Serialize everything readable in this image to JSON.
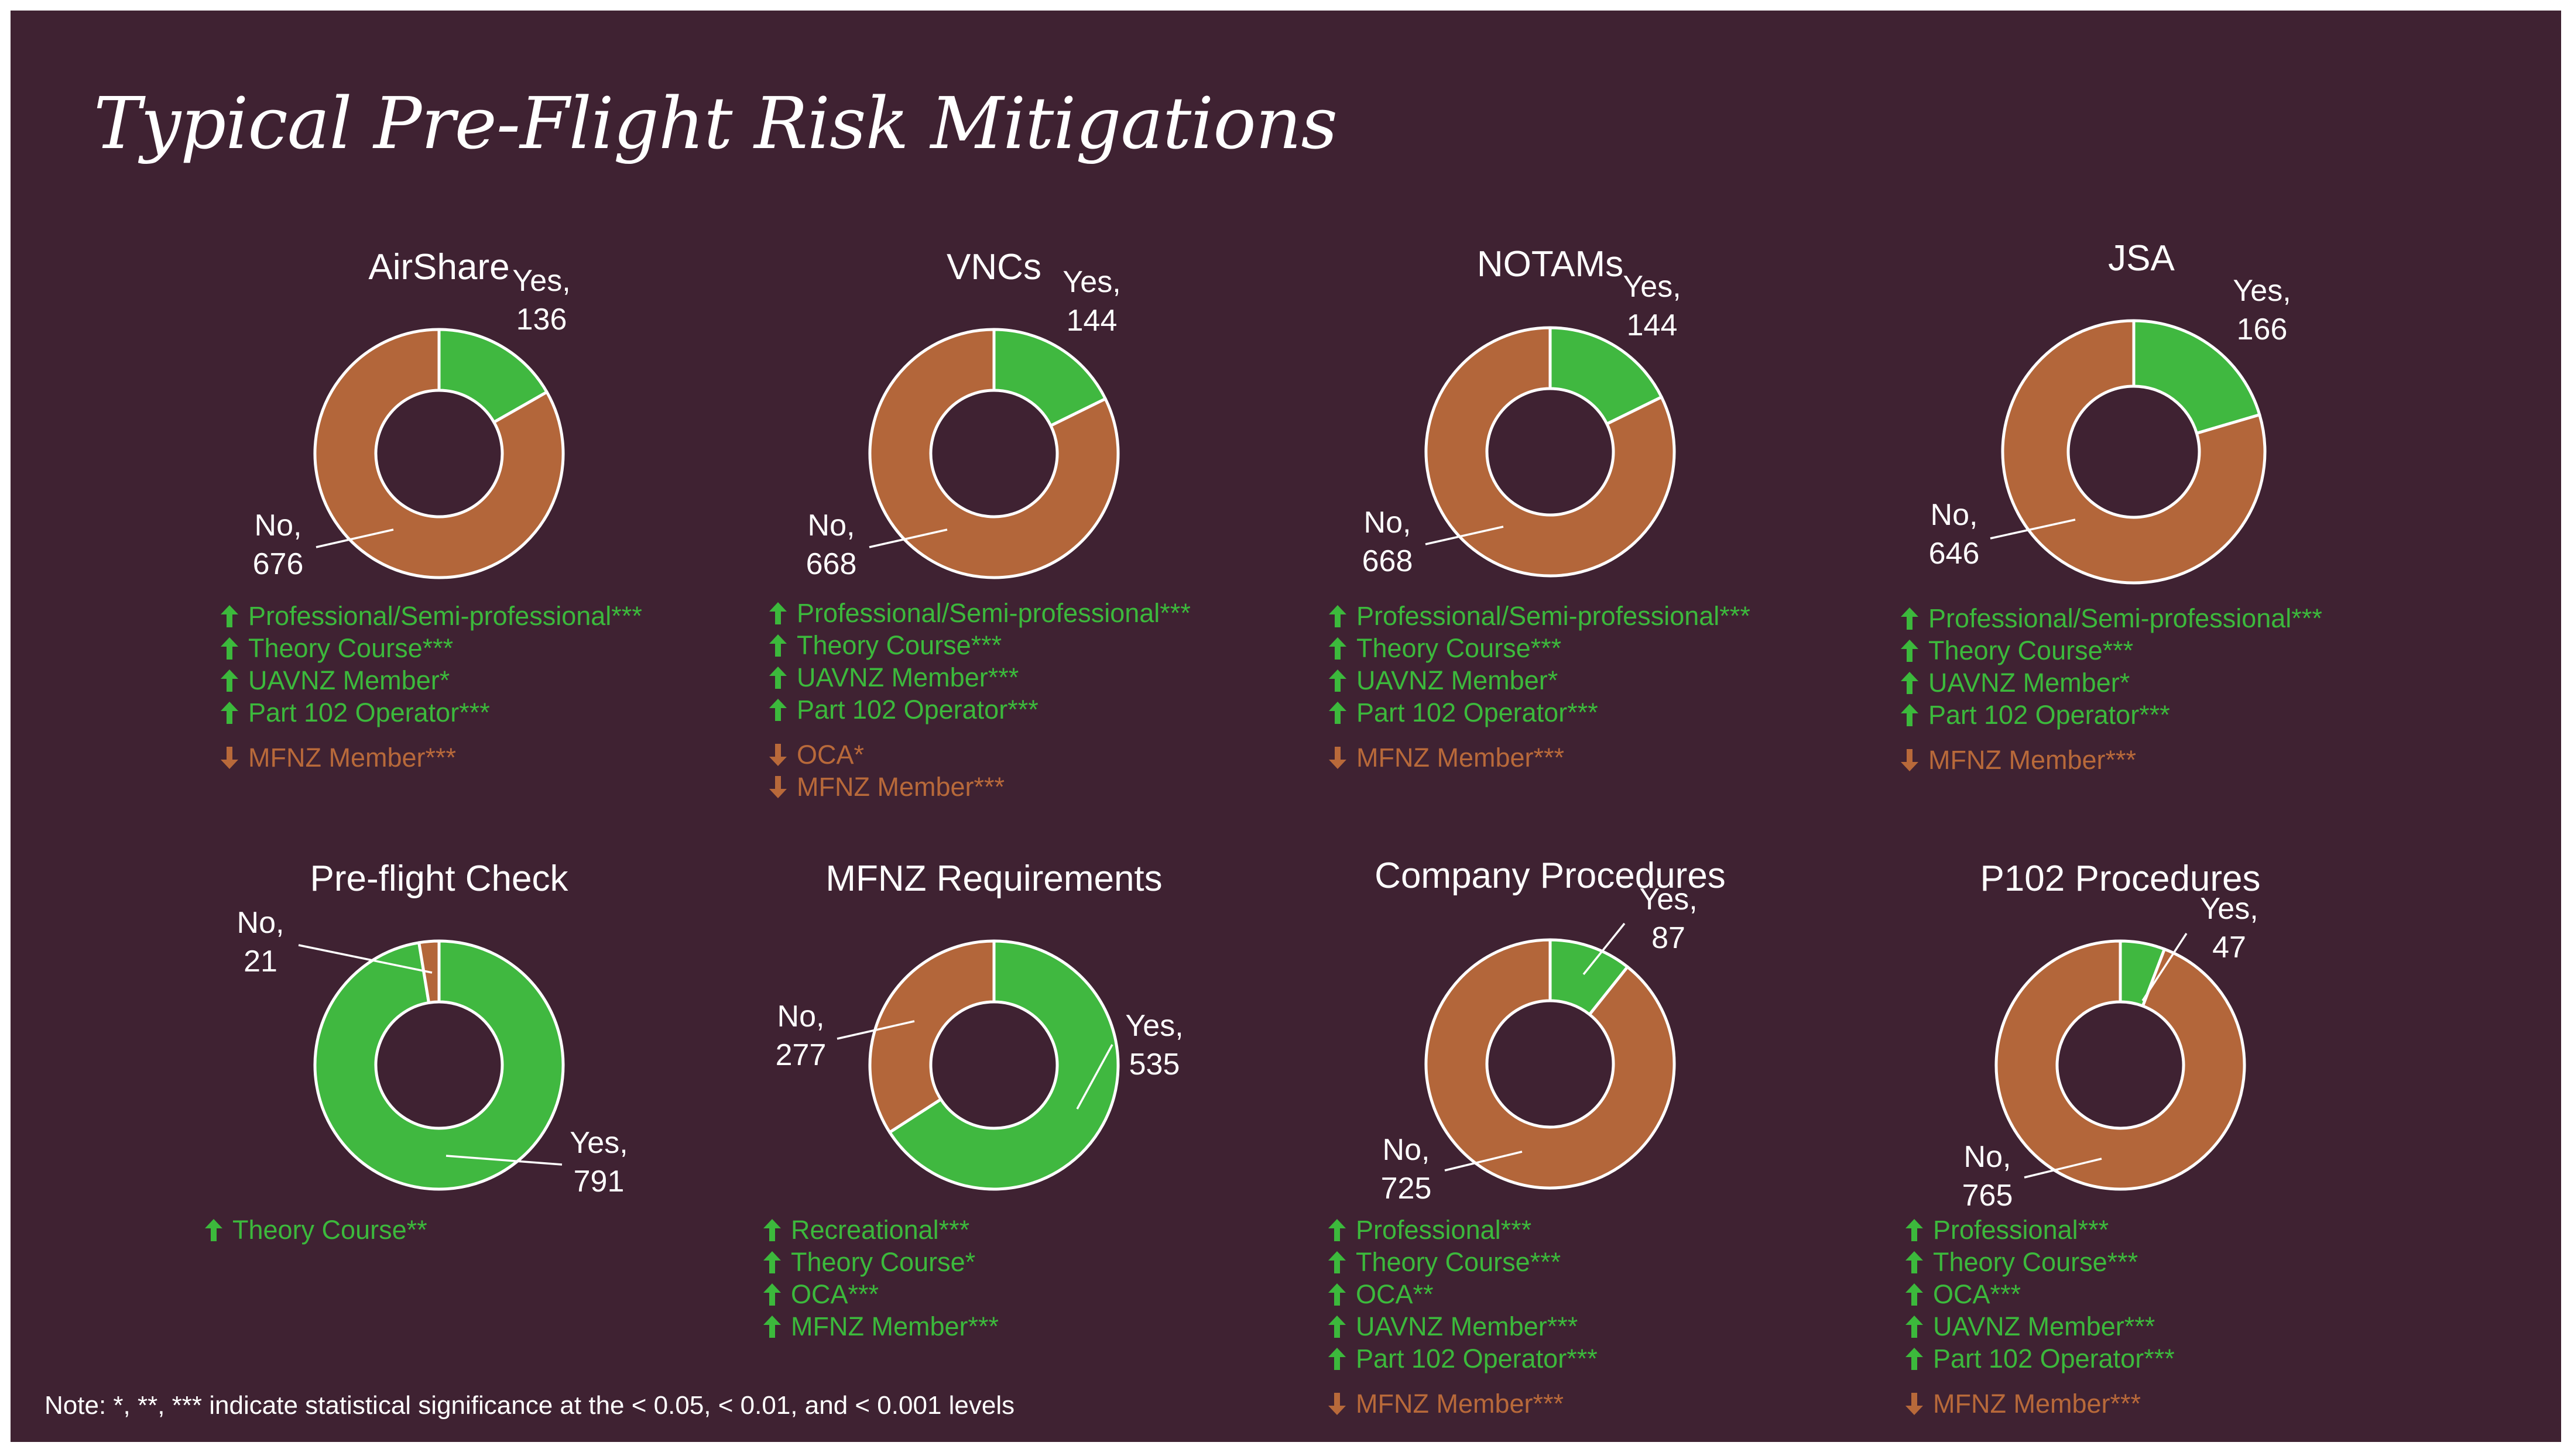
{
  "title": "Typical Pre-Flight Risk Mitigations",
  "note": "Note: *, **, *** indicate statistical significance at the < 0.05, < 0.01, and < 0.001 levels",
  "colors": {
    "background": "#3f2232",
    "yes": "#40b840",
    "no": "#b3663a",
    "up_text": "#3cb93c",
    "down_text": "#b8693a"
  },
  "chart_data": [
    {
      "type": "pie",
      "title": "AirShare",
      "slices": [
        {
          "name": "Yes",
          "value": 136,
          "label": "Yes,",
          "value_label": "136"
        },
        {
          "name": "No",
          "value": 676,
          "label": "No,",
          "value_label": "676"
        }
      ],
      "factors": [
        {
          "dir": "up",
          "text": "Professional/Semi-professional***"
        },
        {
          "dir": "up",
          "text": "Theory Course***"
        },
        {
          "dir": "up",
          "text": "UAVNZ Member*"
        },
        {
          "dir": "up",
          "text": "Part 102 Operator***"
        },
        {
          "dir": "down",
          "text": "MFNZ Member***"
        }
      ]
    },
    {
      "type": "pie",
      "title": "VNCs",
      "slices": [
        {
          "name": "Yes",
          "value": 144,
          "label": "Yes,",
          "value_label": "144"
        },
        {
          "name": "No",
          "value": 668,
          "label": "No,",
          "value_label": "668"
        }
      ],
      "factors": [
        {
          "dir": "up",
          "text": "Professional/Semi-professional***"
        },
        {
          "dir": "up",
          "text": "Theory Course***"
        },
        {
          "dir": "up",
          "text": "UAVNZ Member***"
        },
        {
          "dir": "up",
          "text": "Part 102 Operator***"
        },
        {
          "dir": "down",
          "text": "OCA*"
        },
        {
          "dir": "down",
          "text": "MFNZ Member***"
        }
      ]
    },
    {
      "type": "pie",
      "title": "NOTAMs",
      "slices": [
        {
          "name": "Yes",
          "value": 144,
          "label": "Yes,",
          "value_label": "144"
        },
        {
          "name": "No",
          "value": 668,
          "label": "No,",
          "value_label": "668"
        }
      ],
      "factors": [
        {
          "dir": "up",
          "text": "Professional/Semi-professional***"
        },
        {
          "dir": "up",
          "text": "Theory Course***"
        },
        {
          "dir": "up",
          "text": "UAVNZ Member*"
        },
        {
          "dir": "up",
          "text": "Part 102 Operator***"
        },
        {
          "dir": "down",
          "text": "MFNZ Member***"
        }
      ]
    },
    {
      "type": "pie",
      "title": "JSA",
      "slices": [
        {
          "name": "Yes",
          "value": 166,
          "label": "Yes,",
          "value_label": "166"
        },
        {
          "name": "No",
          "value": 646,
          "label": "No,",
          "value_label": "646"
        }
      ],
      "factors": [
        {
          "dir": "up",
          "text": "Professional/Semi-professional***"
        },
        {
          "dir": "up",
          "text": "Theory Course***"
        },
        {
          "dir": "up",
          "text": "UAVNZ Member*"
        },
        {
          "dir": "up",
          "text": "Part 102 Operator***"
        },
        {
          "dir": "down",
          "text": "MFNZ Member***"
        }
      ]
    },
    {
      "type": "pie",
      "title": "Pre-flight Check",
      "slices": [
        {
          "name": "Yes",
          "value": 791,
          "label": "Yes,",
          "value_label": "791"
        },
        {
          "name": "No",
          "value": 21,
          "label": "No,",
          "value_label": "21"
        }
      ],
      "factors": [
        {
          "dir": "up",
          "text": "Theory Course**"
        }
      ]
    },
    {
      "type": "pie",
      "title": "MFNZ Requirements",
      "slices": [
        {
          "name": "Yes",
          "value": 535,
          "label": "Yes,",
          "value_label": "535"
        },
        {
          "name": "No",
          "value": 277,
          "label": "No,",
          "value_label": "277"
        }
      ],
      "factors": [
        {
          "dir": "up",
          "text": "Recreational***"
        },
        {
          "dir": "up",
          "text": "Theory Course*"
        },
        {
          "dir": "up",
          "text": "OCA***"
        },
        {
          "dir": "up",
          "text": "MFNZ Member***"
        }
      ]
    },
    {
      "type": "pie",
      "title": "Company Procedures",
      "slices": [
        {
          "name": "Yes",
          "value": 87,
          "label": "Yes,",
          "value_label": "87"
        },
        {
          "name": "No",
          "value": 725,
          "label": "No,",
          "value_label": "725"
        }
      ],
      "factors": [
        {
          "dir": "up",
          "text": "Professional***"
        },
        {
          "dir": "up",
          "text": "Theory Course***"
        },
        {
          "dir": "up",
          "text": "OCA**"
        },
        {
          "dir": "up",
          "text": "UAVNZ Member***"
        },
        {
          "dir": "up",
          "text": "Part 102 Operator***"
        },
        {
          "dir": "down",
          "text": "MFNZ Member***"
        }
      ]
    },
    {
      "type": "pie",
      "title": "P102 Procedures",
      "slices": [
        {
          "name": "Yes",
          "value": 47,
          "label": "Yes,",
          "value_label": "47"
        },
        {
          "name": "No",
          "value": 765,
          "label": "No,",
          "value_label": "765"
        }
      ],
      "factors": [
        {
          "dir": "up",
          "text": "Professional***"
        },
        {
          "dir": "up",
          "text": "Theory Course***"
        },
        {
          "dir": "up",
          "text": "OCA***"
        },
        {
          "dir": "up",
          "text": "UAVNZ Member***"
        },
        {
          "dir": "up",
          "text": "Part 102 Operator***"
        },
        {
          "dir": "down",
          "text": "MFNZ Member***"
        }
      ]
    }
  ]
}
